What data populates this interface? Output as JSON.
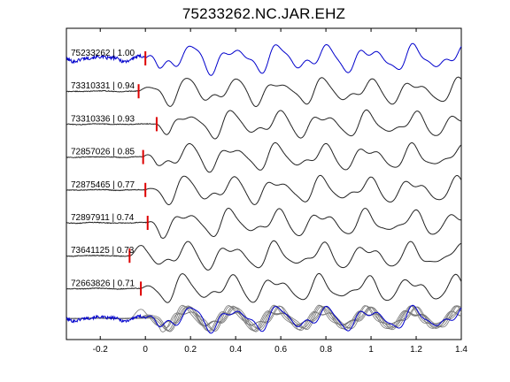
{
  "chart_data": {
    "type": "line",
    "title": "75233262.NC.JAR.EHZ",
    "xlabel": "",
    "ylabel": "",
    "xlim": [
      -0.35,
      1.4
    ],
    "xticks": [
      -0.2,
      0,
      0.2,
      0.4,
      0.6,
      0.8,
      1,
      1.2,
      1.4
    ],
    "xtick_labels": [
      "-0.2",
      "0",
      "0.2",
      "0.4",
      "0.6",
      "0.8",
      "1",
      "1.2",
      "1.4"
    ],
    "grid": false,
    "legend": "none",
    "colors": {
      "reference": "#0000cc",
      "trace": "#222222",
      "stack": "#777777",
      "pick": "#dd0000"
    },
    "traces": [
      {
        "label": "75233262 | 1.00",
        "pick": 0.0,
        "reference": true
      },
      {
        "label": "73310331 | 0.94",
        "pick": -0.03
      },
      {
        "label": "73310336 | 0.93",
        "pick": 0.05
      },
      {
        "label": "72857026 | 0.85",
        "pick": -0.01
      },
      {
        "label": "72875465 | 0.77",
        "pick": 0.0
      },
      {
        "label": "72897911 | 0.74",
        "pick": 0.01
      },
      {
        "label": "73641125 | 0.73",
        "pick": -0.07
      },
      {
        "label": "72663826 | 0.71",
        "pick": -0.02
      }
    ],
    "overlay_stack": {
      "count": 8
    }
  }
}
